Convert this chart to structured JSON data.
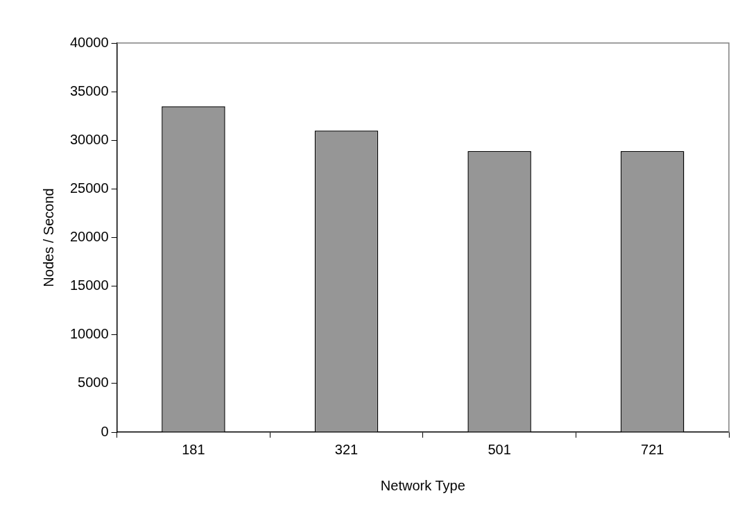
{
  "chart_data": {
    "type": "bar",
    "xlabel": "Network Type",
    "ylabel": "Nodes / Second",
    "categories": [
      "181",
      "321",
      "501",
      "721"
    ],
    "values": [
      33500,
      31000,
      28900,
      28900
    ],
    "color": "#969696",
    "ylim": [
      0,
      40000
    ],
    "yticks": [
      0,
      5000,
      10000,
      15000,
      20000,
      25000,
      30000,
      35000,
      40000
    ],
    "grid": false,
    "legend": false
  }
}
